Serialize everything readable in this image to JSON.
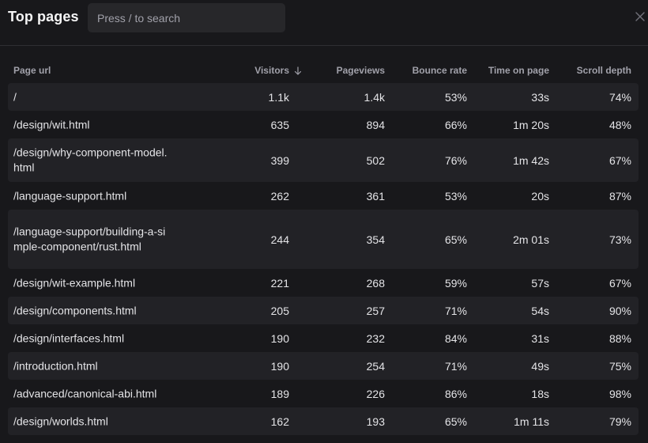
{
  "header": {
    "title": "Top pages",
    "search_placeholder": "Press / to search"
  },
  "columns": {
    "page_url": "Page url",
    "visitors": "Visitors",
    "pageviews": "Pageviews",
    "bounce_rate": "Bounce rate",
    "time_on_page": "Time on page",
    "scroll_depth": "Scroll depth"
  },
  "rows": [
    {
      "url": "/",
      "visitors": "1.1k",
      "pageviews": "1.4k",
      "bounce_rate": "53%",
      "time_on_page": "33s",
      "scroll_depth": "74%"
    },
    {
      "url": "/design/wit.html",
      "visitors": "635",
      "pageviews": "894",
      "bounce_rate": "66%",
      "time_on_page": "1m 20s",
      "scroll_depth": "48%"
    },
    {
      "url": "/design/why-component-model.html",
      "visitors": "399",
      "pageviews": "502",
      "bounce_rate": "76%",
      "time_on_page": "1m 42s",
      "scroll_depth": "67%"
    },
    {
      "url": "/language-support.html",
      "visitors": "262",
      "pageviews": "361",
      "bounce_rate": "53%",
      "time_on_page": "20s",
      "scroll_depth": "87%"
    },
    {
      "url": "/language-support/building-a-simple-component/rust.html",
      "visitors": "244",
      "pageviews": "354",
      "bounce_rate": "65%",
      "time_on_page": "2m 01s",
      "scroll_depth": "73%"
    },
    {
      "url": "/design/wit-example.html",
      "visitors": "221",
      "pageviews": "268",
      "bounce_rate": "59%",
      "time_on_page": "57s",
      "scroll_depth": "67%"
    },
    {
      "url": "/design/components.html",
      "visitors": "205",
      "pageviews": "257",
      "bounce_rate": "71%",
      "time_on_page": "54s",
      "scroll_depth": "90%"
    },
    {
      "url": "/design/interfaces.html",
      "visitors": "190",
      "pageviews": "232",
      "bounce_rate": "84%",
      "time_on_page": "31s",
      "scroll_depth": "88%"
    },
    {
      "url": "/introduction.html",
      "visitors": "190",
      "pageviews": "254",
      "bounce_rate": "71%",
      "time_on_page": "49s",
      "scroll_depth": "75%"
    },
    {
      "url": "/advanced/canonical-abi.html",
      "visitors": "189",
      "pageviews": "226",
      "bounce_rate": "86%",
      "time_on_page": "18s",
      "scroll_depth": "98%"
    },
    {
      "url": "/design/worlds.html",
      "visitors": "162",
      "pageviews": "193",
      "bounce_rate": "65%",
      "time_on_page": "1m 11s",
      "scroll_depth": "79%"
    }
  ],
  "icons": {
    "close": "close-icon",
    "sort": "arrow-down-icon"
  },
  "colors": {
    "background": "#18181b",
    "row_alt": "#222226",
    "search_bg": "#27272a",
    "text": "#e4e4e7",
    "muted": "#a1a1aa"
  }
}
